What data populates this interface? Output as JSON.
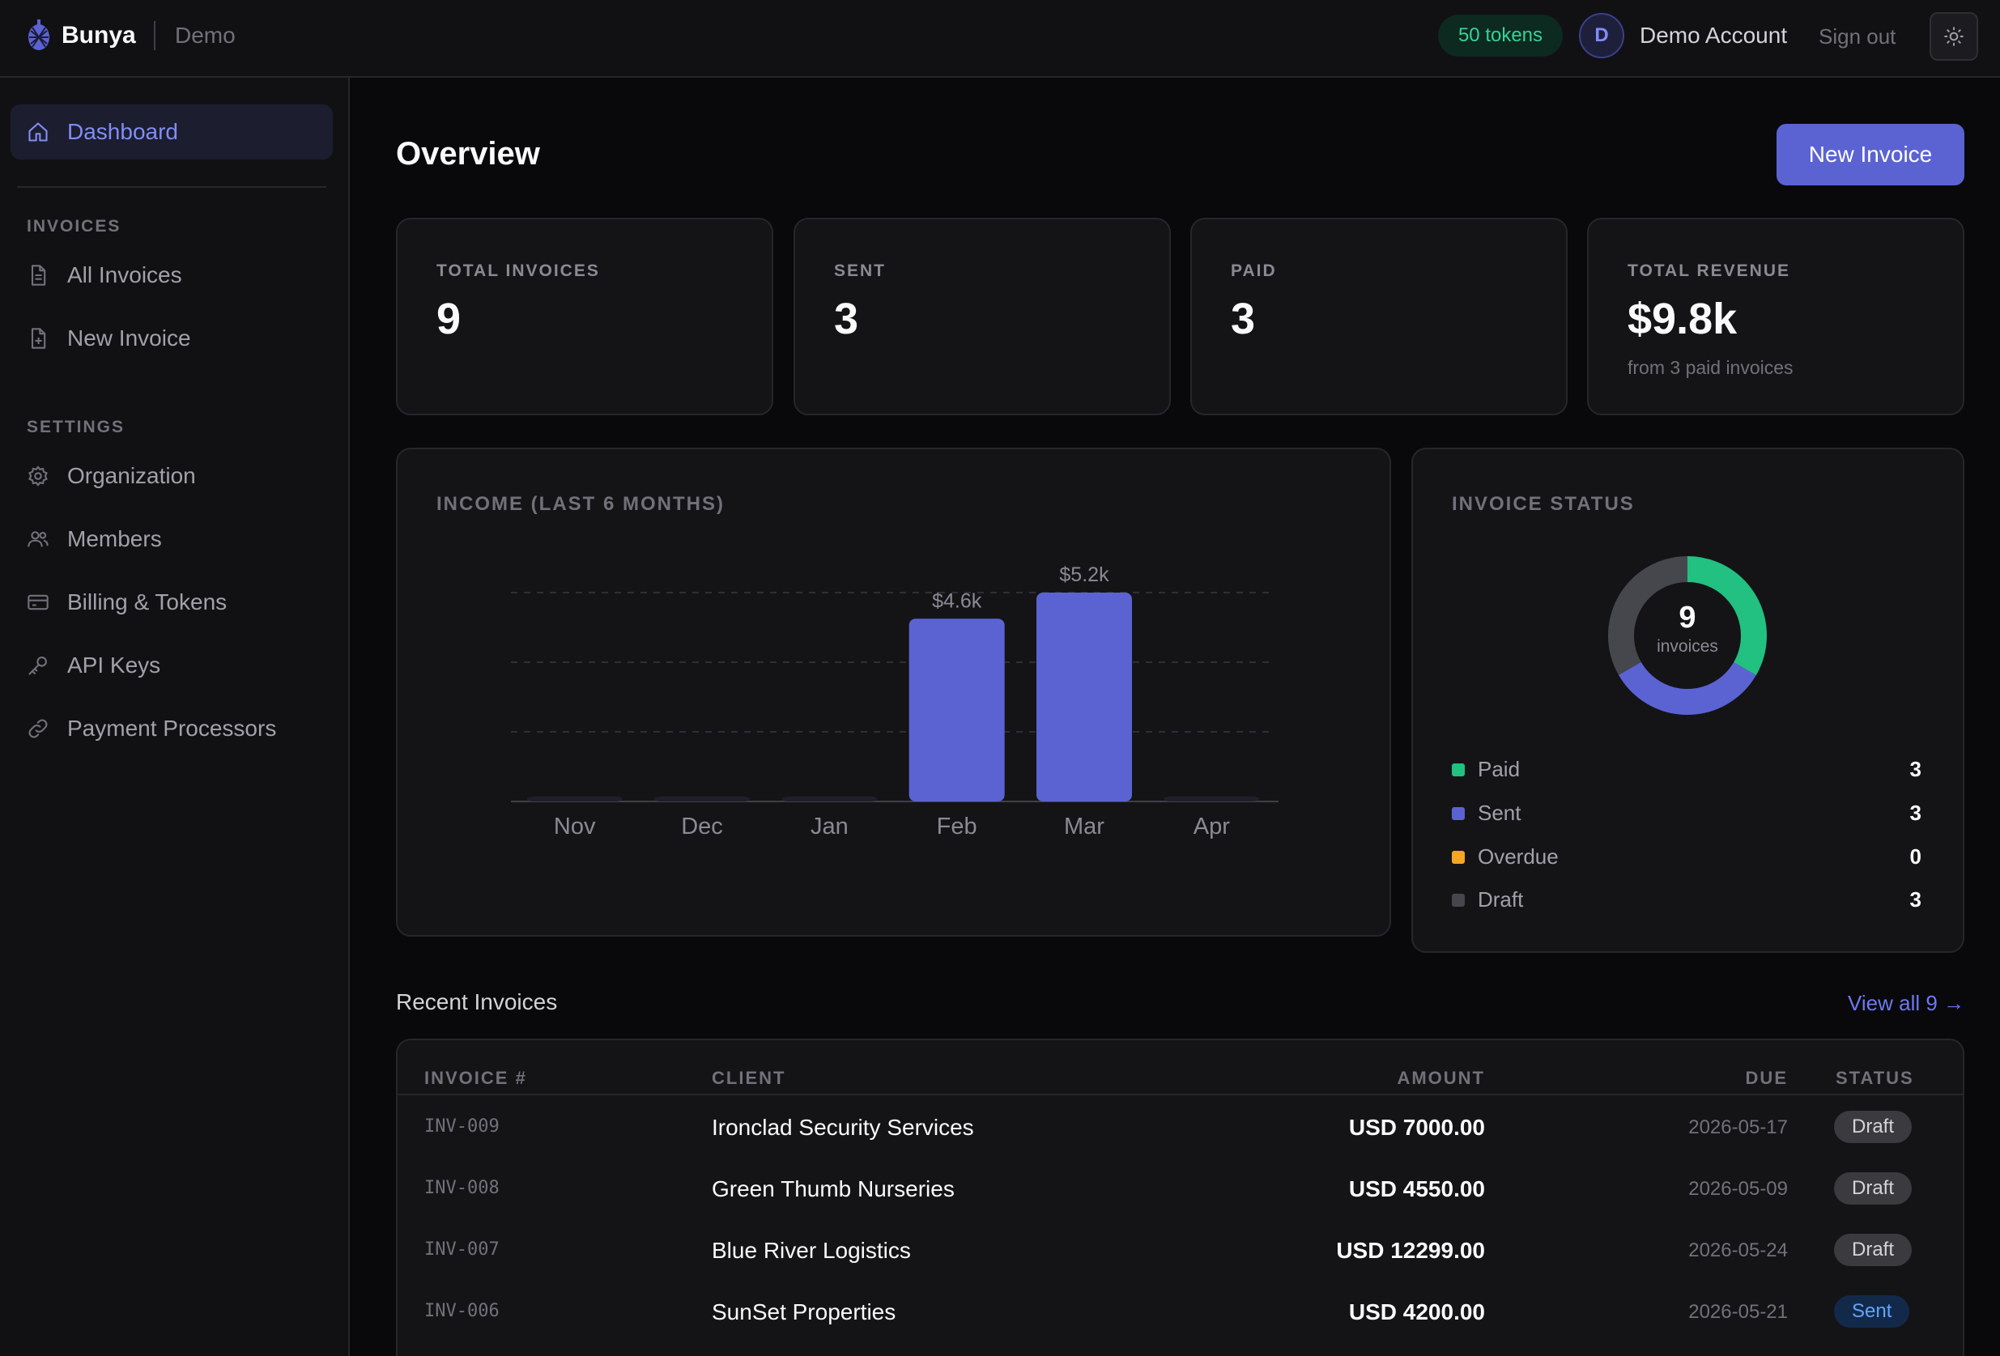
{
  "app": {
    "brand": "Bunya",
    "environment": "Demo",
    "tokens": "50 tokens",
    "avatar_initial": "D",
    "account_name": "Demo Account",
    "sign_out": "Sign out"
  },
  "sidebar": {
    "dashboard": "Dashboard",
    "invoices_heading": "INVOICES",
    "invoices_items": [
      "All Invoices",
      "New Invoice"
    ],
    "settings_heading": "SETTINGS",
    "settings_items": [
      "Organization",
      "Members",
      "Billing & Tokens",
      "API Keys",
      "Payment Processors"
    ]
  },
  "header": {
    "title": "Overview",
    "new_invoice": "New Invoice"
  },
  "stats": [
    {
      "label": "TOTAL INVOICES",
      "value": "9",
      "sub": ""
    },
    {
      "label": "SENT",
      "value": "3",
      "sub": ""
    },
    {
      "label": "PAID",
      "value": "3",
      "sub": ""
    },
    {
      "label": "TOTAL REVENUE",
      "value": "$9.8k",
      "sub": "from 3 paid invoices"
    }
  ],
  "income": {
    "title": "INCOME (LAST 6 MONTHS)"
  },
  "status_panel": {
    "title": "INVOICE STATUS",
    "center_value": "9",
    "center_label": "invoices",
    "items": [
      {
        "label": "Paid",
        "count": "3",
        "color": "#22c081"
      },
      {
        "label": "Sent",
        "count": "3",
        "color": "#5b63d3"
      },
      {
        "label": "Overdue",
        "count": "0",
        "color": "#f5a524"
      },
      {
        "label": "Draft",
        "count": "3",
        "color": "#46464d"
      }
    ]
  },
  "chart_data": {
    "type": "bar",
    "title": "INCOME (LAST 6 MONTHS)",
    "categories": [
      "Nov",
      "Dec",
      "Jan",
      "Feb",
      "Mar",
      "Apr"
    ],
    "values": [
      0,
      0,
      0,
      4550,
      5200,
      0
    ],
    "data_labels": [
      "",
      "",
      "",
      "$4.6k",
      "$5.2k",
      ""
    ],
    "ylim": [
      0,
      5200
    ],
    "grid": true,
    "bar_color": "#5b63d3"
  },
  "recent": {
    "title": "Recent Invoices",
    "view_all": "View all 9 →",
    "columns": [
      "INVOICE #",
      "CLIENT",
      "AMOUNT",
      "DUE",
      "STATUS"
    ],
    "rows": [
      {
        "num": "INV-009",
        "client": "Ironclad Security Services",
        "amount": "USD 7000.00",
        "due": "2026-05-17",
        "status": "Draft"
      },
      {
        "num": "INV-008",
        "client": "Green Thumb Nurseries",
        "amount": "USD 4550.00",
        "due": "2026-05-09",
        "status": "Draft"
      },
      {
        "num": "INV-007",
        "client": "Blue River Logistics",
        "amount": "USD 12299.00",
        "due": "2026-05-24",
        "status": "Draft"
      },
      {
        "num": "INV-006",
        "client": "SunSet Properties",
        "amount": "USD 4200.00",
        "due": "2026-05-21",
        "status": "Sent"
      }
    ]
  }
}
